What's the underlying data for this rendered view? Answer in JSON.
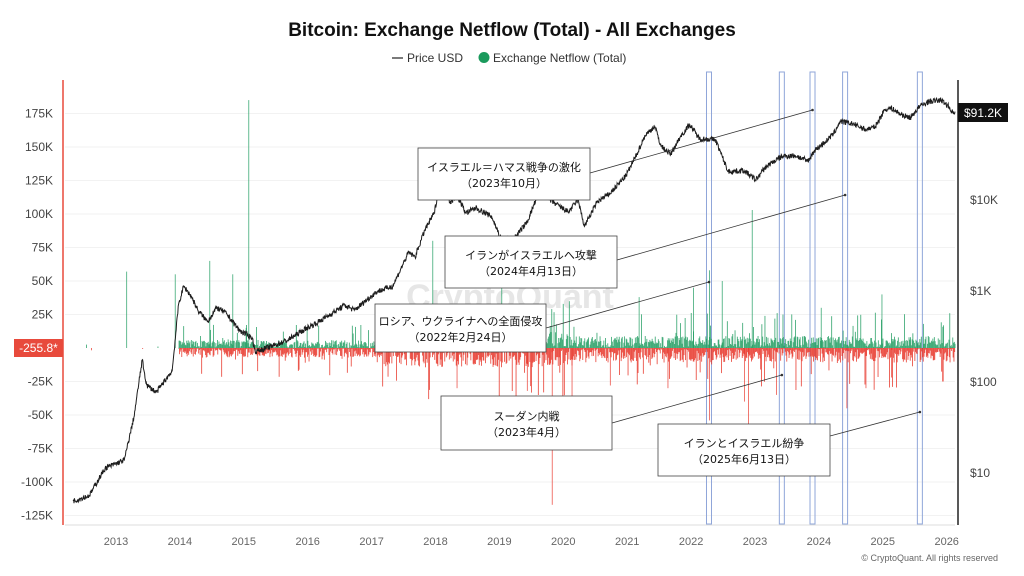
{
  "chart_data": {
    "type": "bar+line",
    "title": "Bitcoin: Exchange Netflow (Total) - All Exchanges",
    "legend": [
      {
        "label": "Price USD",
        "color": "#222222",
        "marker": "line"
      },
      {
        "label": "Exchange Netflow (Total)",
        "color": "#1a9a5c",
        "marker": "dot"
      }
    ],
    "legend_placement": "top-center",
    "left_axis": {
      "ticks": [
        175000,
        150000,
        125000,
        100000,
        75000,
        50000,
        25000,
        -25000,
        -50000,
        -75000,
        -100000,
        -125000
      ],
      "tick_labels": [
        "175K",
        "150K",
        "125K",
        "100K",
        "75K",
        "50K",
        "25K",
        "-25K",
        "-50K",
        "-75K",
        "-100K",
        "-125K"
      ],
      "range": [
        -130000,
        190000
      ],
      "current_value_label": "-255.8*"
    },
    "right_axis": {
      "scale": "log",
      "ticks": [
        10000,
        1000,
        100,
        10
      ],
      "tick_labels": [
        "$10K",
        "$1K",
        "$100",
        "$10"
      ],
      "current_value_label": "$91.2K"
    },
    "x_axis": {
      "ticks": [
        2013,
        2014,
        2015,
        2016,
        2017,
        2018,
        2019,
        2020,
        2021,
        2022,
        2023,
        2024,
        2025,
        2026
      ],
      "tick_labels": [
        "2013",
        "2014",
        "2015",
        "2016",
        "2017",
        "2018",
        "2019",
        "2020",
        "2021",
        "2022",
        "2023",
        "2024",
        "2025",
        "2026"
      ],
      "range": [
        2012.1,
        2026.05
      ]
    },
    "colors": {
      "inflow": "#1a9a5c",
      "outflow": "#e8372c",
      "price": "#222222",
      "band": "#8fa6d9",
      "left_axis": "#e84a3c"
    },
    "price_series": [
      [
        2012.2,
        4.8
      ],
      [
        2012.45,
        5.5
      ],
      [
        2012.7,
        11
      ],
      [
        2013.0,
        13.5
      ],
      [
        2013.15,
        40
      ],
      [
        2013.28,
        170
      ],
      [
        2013.35,
        90
      ],
      [
        2013.5,
        75
      ],
      [
        2013.75,
        130
      ],
      [
        2013.85,
        700
      ],
      [
        2013.93,
        1100
      ],
      [
        2014.05,
        850
      ],
      [
        2014.15,
        600
      ],
      [
        2014.3,
        450
      ],
      [
        2014.45,
        640
      ],
      [
        2014.6,
        550
      ],
      [
        2014.8,
        360
      ],
      [
        2015.0,
        300
      ],
      [
        2015.05,
        210
      ],
      [
        2015.3,
        240
      ],
      [
        2015.55,
        280
      ],
      [
        2015.85,
        380
      ],
      [
        2016.0,
        430
      ],
      [
        2016.45,
        680
      ],
      [
        2016.6,
        600
      ],
      [
        2016.95,
        960
      ],
      [
        2017.2,
        1100
      ],
      [
        2017.45,
        2600
      ],
      [
        2017.55,
        2300
      ],
      [
        2017.7,
        4500
      ],
      [
        2017.85,
        7000
      ],
      [
        2017.97,
        19000
      ],
      [
        2018.1,
        9000
      ],
      [
        2018.2,
        11000
      ],
      [
        2018.35,
        7000
      ],
      [
        2018.5,
        8000
      ],
      [
        2018.75,
        6400
      ],
      [
        2018.9,
        3600
      ],
      [
        2019.1,
        3700
      ],
      [
        2019.3,
        5500
      ],
      [
        2019.5,
        12500
      ],
      [
        2019.65,
        9800
      ],
      [
        2019.95,
        7200
      ],
      [
        2020.1,
        9800
      ],
      [
        2020.2,
        5000
      ],
      [
        2020.4,
        9300
      ],
      [
        2020.6,
        11500
      ],
      [
        2020.85,
        18000
      ],
      [
        2021.0,
        29000
      ],
      [
        2021.15,
        50000
      ],
      [
        2021.3,
        63000
      ],
      [
        2021.4,
        38000
      ],
      [
        2021.55,
        31000
      ],
      [
        2021.7,
        48000
      ],
      [
        2021.85,
        66000
      ],
      [
        2022.0,
        46000
      ],
      [
        2022.25,
        45000
      ],
      [
        2022.45,
        20000
      ],
      [
        2022.7,
        20500
      ],
      [
        2022.88,
        16200
      ],
      [
        2023.05,
        23000
      ],
      [
        2023.3,
        29500
      ],
      [
        2023.5,
        30000
      ],
      [
        2023.7,
        26000
      ],
      [
        2023.8,
        34000
      ],
      [
        2023.97,
        42500
      ],
      [
        2024.1,
        52000
      ],
      [
        2024.2,
        71000
      ],
      [
        2024.4,
        67000
      ],
      [
        2024.6,
        58000
      ],
      [
        2024.75,
        62000
      ],
      [
        2024.9,
        96000
      ],
      [
        2025.0,
        100000
      ],
      [
        2025.15,
        85000
      ],
      [
        2025.3,
        78000
      ],
      [
        2025.45,
        105000
      ],
      [
        2025.6,
        118000
      ],
      [
        2025.78,
        122000
      ],
      [
        2025.88,
        108000
      ],
      [
        2025.97,
        88000
      ],
      [
        2026.0,
        91200
      ]
    ],
    "netflow_spikes": [
      [
        2013.03,
        57000
      ],
      [
        2013.79,
        55000
      ],
      [
        2014.33,
        65000
      ],
      [
        2014.69,
        55000
      ],
      [
        2014.94,
        185000
      ],
      [
        2014.9,
        15000
      ],
      [
        2017.82,
        80000
      ],
      [
        2018.2,
        -30000
      ],
      [
        2018.9,
        48000
      ],
      [
        2019.69,
        -117000
      ],
      [
        2019.3,
        -32000
      ],
      [
        2020.0,
        -40000
      ],
      [
        2020.6,
        -28000
      ],
      [
        2021.05,
        38000
      ],
      [
        2021.5,
        -30000
      ],
      [
        2021.9,
        45000
      ],
      [
        2022.15,
        58000
      ],
      [
        2022.15,
        -54000
      ],
      [
        2022.35,
        50000
      ],
      [
        2022.76,
        -57000
      ],
      [
        2022.82,
        103000
      ],
      [
        2022.7,
        -40000
      ],
      [
        2023.2,
        -35000
      ],
      [
        2023.3,
        25000
      ],
      [
        2023.9,
        30000
      ],
      [
        2024.3,
        -45000
      ],
      [
        2024.6,
        -30000
      ],
      [
        2024.85,
        40000
      ],
      [
        2025.0,
        -22000
      ],
      [
        2025.5,
        18000
      ],
      [
        2025.8,
        -25000
      ]
    ],
    "event_bands": [
      2022.15,
      2023.29,
      2023.77,
      2024.28,
      2025.45
    ],
    "annotations": [
      {
        "text": "イスラエル＝ハマス戦争の激化",
        "date": "（2023年10月）",
        "points_to": 2023.77
      },
      {
        "text": "イランがイスラエルへ攻撃",
        "date": "（2024年4月13日）",
        "points_to": 2024.28
      },
      {
        "text": "ロシア、ウクライナへの全面侵攻",
        "date": "（2022年2月24日）",
        "points_to": 2022.15
      },
      {
        "text": "スーダン内戦",
        "date": "（2023年4月）",
        "points_to": 2023.29
      },
      {
        "text": "イランとイスラエル紛争",
        "date": "（2025年6月13日）",
        "points_to": 2025.45
      }
    ]
  },
  "watermark": "CryptoQuant",
  "footer": "© CryptoQuant. All rights reserved"
}
